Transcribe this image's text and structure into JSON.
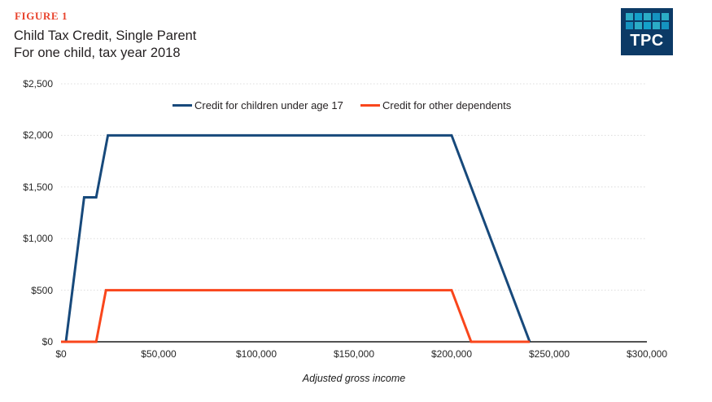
{
  "header": {
    "figure_label": "FIGURE 1",
    "title_line1": "Child Tax Credit, Single Parent",
    "title_line2": "For one child, tax year 2018",
    "figure_label_color": "#e8432d"
  },
  "logo": {
    "text": "TPC",
    "background_color": "#0c3a66",
    "square_colors": [
      "#2bacc6",
      "#14a0ca",
      "#2bacc6",
      "#1593c0",
      "#2bacc6",
      "#1593c0",
      "#2bacc6",
      "#14a0ca",
      "#2bacc6",
      "#1593c0"
    ]
  },
  "legend": {
    "items": [
      {
        "label": "Credit for children under age 17",
        "color": "#17497b"
      },
      {
        "label": "Credit for other dependents",
        "color": "#f9461c"
      }
    ]
  },
  "chart_data": {
    "type": "line",
    "title": "Child Tax Credit, Single Parent — For one child, tax year 2018",
    "xlabel": "Adjusted gross income",
    "ylabel": "",
    "x_axis": {
      "min": 0,
      "max": 300000,
      "ticks": [
        0,
        50000,
        100000,
        150000,
        200000,
        250000,
        300000
      ],
      "tick_labels": [
        "$0",
        "$50,000",
        "$100,000",
        "$150,000",
        "$200,000",
        "$250,000",
        "$300,000"
      ]
    },
    "y_axis": {
      "min": 0,
      "max": 2500,
      "ticks": [
        0,
        500,
        1000,
        1500,
        2000,
        2500
      ],
      "tick_labels": [
        "$0",
        "$500",
        "$1,000",
        "$1,500",
        "$2,000",
        "$2,500"
      ]
    },
    "grid": "horizontal-dotted",
    "legend_position": "top-inside",
    "series": [
      {
        "name": "Credit for children under age 17",
        "color": "#17497b",
        "points": [
          [
            0,
            0
          ],
          [
            2500,
            0
          ],
          [
            11833,
            1400
          ],
          [
            18000,
            1400
          ],
          [
            24000,
            2000
          ],
          [
            200000,
            2000
          ],
          [
            240000,
            0
          ]
        ]
      },
      {
        "name": "Credit for other dependents",
        "color": "#f9461c",
        "points": [
          [
            0,
            0
          ],
          [
            18000,
            0
          ],
          [
            23000,
            500
          ],
          [
            200000,
            500
          ],
          [
            210000,
            0
          ],
          [
            240000,
            0
          ]
        ]
      }
    ],
    "colors": {
      "gridline": "#dcdcdc",
      "axis": "#1a1a1a"
    }
  }
}
